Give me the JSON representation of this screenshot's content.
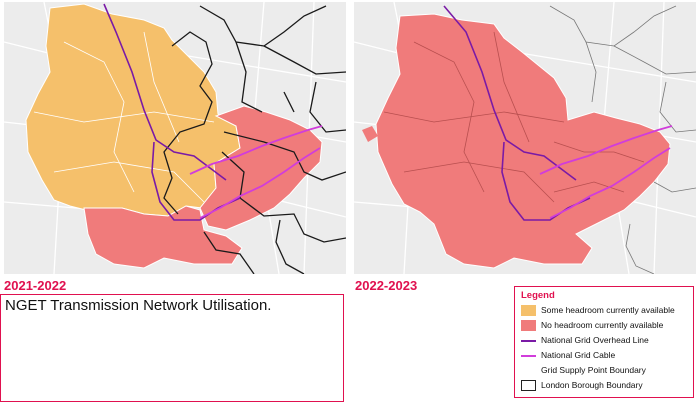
{
  "maps": {
    "left": {
      "year": "2021-2022"
    },
    "right": {
      "year": "2022-2023"
    }
  },
  "caption": "NGET Transmission Network Utilisation.",
  "legend": {
    "title": "Legend",
    "items": [
      {
        "label": "Some headroom currently available",
        "color": "#f5c06b"
      },
      {
        "label": "No headroom currently available",
        "color": "#f07b7b"
      },
      {
        "label": "National Grid Overhead Line",
        "color": "#7a1aa6"
      },
      {
        "label": "National Grid Cable",
        "color": "#d13ddb"
      },
      {
        "label": "Grid Supply Point Boundary",
        "color": "#ffffff"
      },
      {
        "label": "London Borough Boundary",
        "color": "#222222"
      }
    ]
  },
  "colors": {
    "accent": "#e0114f",
    "headroom": "#f5c06b",
    "no_headroom": "#f07b7b",
    "overhead_line": "#7a1aa6",
    "cable": "#d13ddb",
    "basemap": "#eeeeee"
  }
}
